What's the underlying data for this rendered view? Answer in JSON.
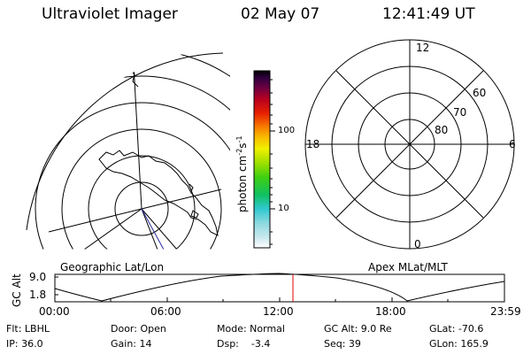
{
  "header": {
    "title": "Ultraviolet Imager",
    "date": "02 May 07",
    "time": "12:41:49 UT"
  },
  "colorbar": {
    "unit_prefix": "photon cm",
    "unit_exp1": "-2",
    "unit_mid": "s",
    "unit_exp2": "-1",
    "ticks": [
      "100",
      "10"
    ]
  },
  "maps": {
    "left_label": "Geographic Lat/Lon",
    "right_label": "Apex MLat/MLT",
    "polar_labels": {
      "mlt_top": "12",
      "mlt_left": "18",
      "mlt_right": "6",
      "mlt_bottom": "0",
      "lat_60": "60",
      "lat_70": "70",
      "lat_80": "80"
    }
  },
  "altitude_plot": {
    "ylabel": "GC Alt",
    "y_ticks": [
      "9.0",
      "1.8"
    ],
    "x_ticks": [
      "00:00",
      "06:00",
      "12:00",
      "18:00",
      "23:59"
    ]
  },
  "info": {
    "filter": "Flt: LBHL",
    "ip": "IP: 36.0",
    "door": "Door: Open",
    "gain": "Gain: 14",
    "mode": "Mode: Normal",
    "dsp": "Dsp:    -3.4",
    "gc_alt": "GC Alt: 9.0 Re",
    "seq": "Seq: 39",
    "glat": "GLat: -70.6",
    "glon": "GLon: 165.9"
  },
  "colors": {
    "marker": "#e00000",
    "track": "#2a2aa0"
  }
}
